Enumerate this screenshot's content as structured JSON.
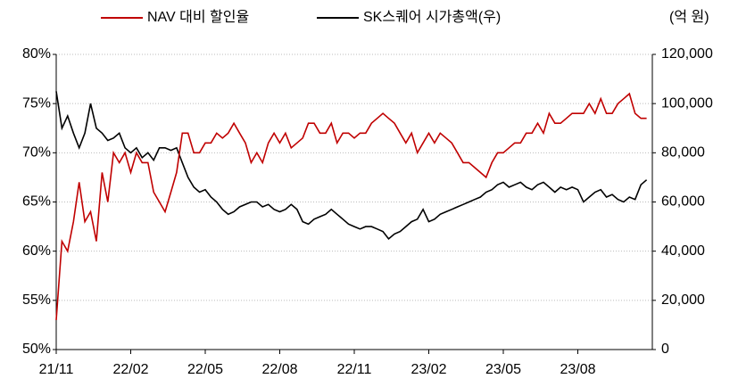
{
  "chart_data": {
    "type": "line",
    "y2_label": "(억 원)",
    "categories": [
      "21/11",
      null,
      null,
      null,
      null,
      null,
      null,
      null,
      null,
      null,
      null,
      null,
      null,
      "22/02",
      null,
      null,
      null,
      null,
      null,
      null,
      null,
      null,
      null,
      null,
      null,
      null,
      "22/05",
      null,
      null,
      null,
      null,
      null,
      null,
      null,
      null,
      null,
      null,
      null,
      null,
      "22/08",
      null,
      null,
      null,
      null,
      null,
      null,
      null,
      null,
      null,
      null,
      null,
      null,
      "22/11",
      null,
      null,
      null,
      null,
      null,
      null,
      null,
      null,
      null,
      null,
      null,
      null,
      "23/02",
      null,
      null,
      null,
      null,
      null,
      null,
      null,
      null,
      null,
      null,
      null,
      null,
      "23/05",
      null,
      null,
      null,
      null,
      null,
      null,
      null,
      null,
      null,
      null,
      null,
      null,
      "23/08",
      null,
      null,
      null,
      null,
      null,
      null,
      null,
      null,
      null,
      null,
      null,
      null
    ],
    "series": [
      {
        "name": "NAV 대비 할인율",
        "color": "#c00000",
        "axis": "y",
        "values": [
          53,
          61,
          60,
          63,
          67,
          63,
          64,
          61,
          68,
          65,
          70,
          69,
          70,
          68,
          70,
          69,
          69,
          66,
          65,
          64,
          66,
          68,
          72,
          72,
          70,
          70,
          71,
          71,
          72,
          71.5,
          72,
          73,
          72,
          71,
          69,
          70,
          69,
          71,
          72,
          71,
          72,
          70.5,
          71,
          71.5,
          73,
          73,
          72,
          72,
          73,
          71,
          72,
          72,
          71.5,
          72,
          72,
          73,
          73.5,
          74,
          73.5,
          73,
          72,
          71,
          72,
          70,
          71,
          72,
          71,
          72,
          71.5,
          71,
          70,
          69,
          69,
          68.5,
          68,
          67.5,
          69,
          70,
          70,
          70.5,
          71,
          71,
          72,
          72,
          73,
          72,
          74,
          73,
          73,
          73.5,
          74,
          74,
          74,
          75,
          74,
          75.5,
          74,
          74,
          75,
          75.5,
          76,
          74,
          73.5,
          73.5
        ]
      },
      {
        "name": "SK스퀘어 시가총액(우)",
        "color": "#000000",
        "axis": "y2",
        "values": [
          105000,
          90000,
          95000,
          88000,
          82000,
          88000,
          100000,
          90000,
          88000,
          85000,
          86000,
          88000,
          82000,
          80000,
          82000,
          78000,
          80000,
          77000,
          82000,
          82000,
          81000,
          82000,
          76000,
          70000,
          66000,
          64000,
          65000,
          62000,
          60000,
          57000,
          55000,
          56000,
          58000,
          59000,
          60000,
          60000,
          58000,
          59000,
          57000,
          56000,
          57000,
          59000,
          57000,
          52000,
          51000,
          53000,
          54000,
          55000,
          57000,
          55000,
          53000,
          51000,
          50000,
          49000,
          50000,
          50000,
          49000,
          48000,
          45000,
          47000,
          48000,
          50000,
          52000,
          53000,
          57000,
          52000,
          53000,
          55000,
          56000,
          57000,
          58000,
          59000,
          60000,
          61000,
          62000,
          64000,
          65000,
          67000,
          68000,
          66000,
          67000,
          68000,
          66000,
          65000,
          67000,
          68000,
          66000,
          64000,
          66000,
          65000,
          66000,
          65000,
          60000,
          62000,
          64000,
          65000,
          62000,
          63000,
          61000,
          60000,
          62000,
          61000,
          67000,
          69000
        ]
      }
    ],
    "ylim": [
      50,
      80
    ],
    "yticks": [
      {
        "value": 50,
        "label": "50%"
      },
      {
        "value": 55,
        "label": "55%"
      },
      {
        "value": 60,
        "label": "60%"
      },
      {
        "value": 65,
        "label": "65%"
      },
      {
        "value": 70,
        "label": "70%"
      },
      {
        "value": 75,
        "label": "75%"
      },
      {
        "value": 80,
        "label": "80%"
      }
    ],
    "y2lim": [
      0,
      120000
    ],
    "y2ticks": [
      0,
      {
        "value": 20000,
        "label": "20,000"
      },
      {
        "value": 40000,
        "label": "40,000"
      },
      {
        "value": 60000,
        "label": "60,000"
      },
      {
        "value": 80000,
        "label": "80,000"
      },
      {
        "value": 100000,
        "label": "100,000"
      },
      {
        "value": 120000,
        "label": "120,000"
      }
    ],
    "grid": true
  }
}
